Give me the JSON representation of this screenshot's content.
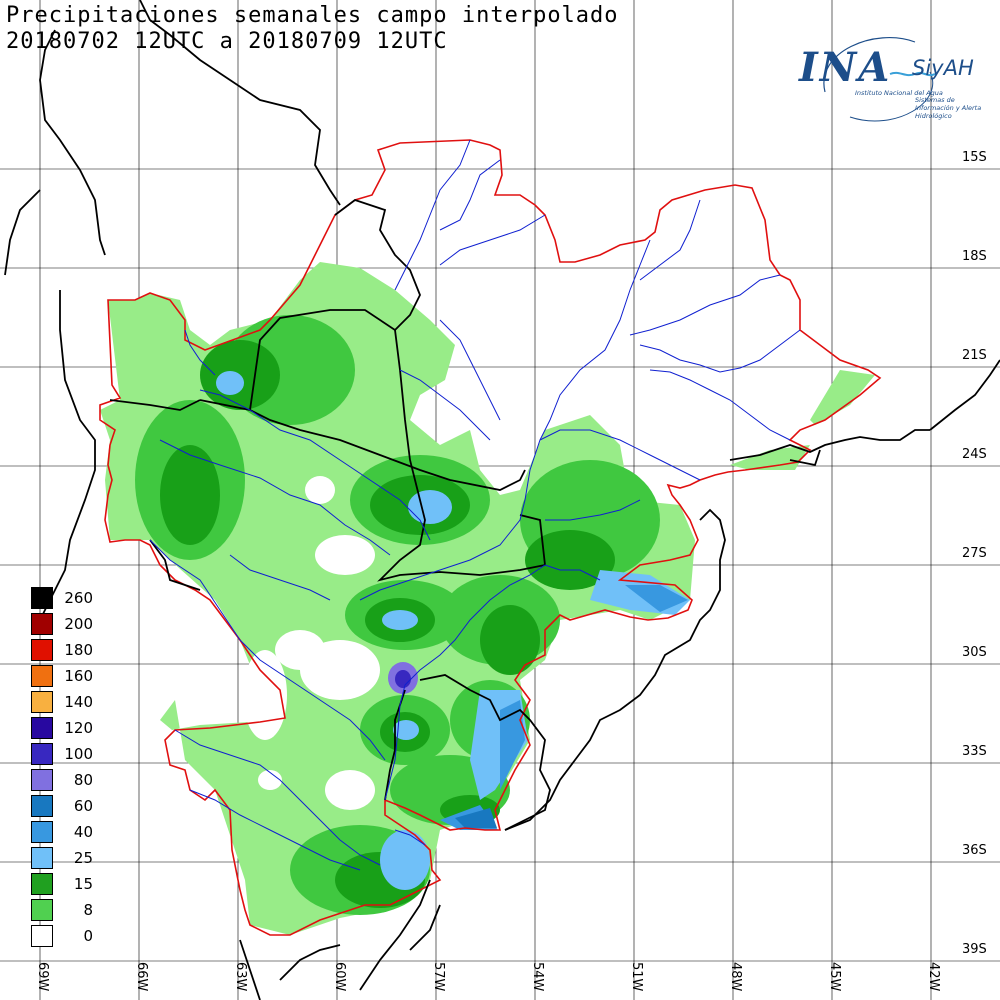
{
  "title": {
    "line1": "Precipitaciones semanales campo interpolado",
    "line2": "20180702 12UTC a 20180709 12UTC"
  },
  "logo": {
    "name": "INA",
    "system": "SiyAH",
    "institute": "Instituto Nacional del Agua",
    "system_full": "Sistemas de Información y Alerta Hidrológico"
  },
  "lat_labels": [
    "15S",
    "18S",
    "21S",
    "24S",
    "27S",
    "30S",
    "33S",
    "36S",
    "39S"
  ],
  "lon_labels": [
    "69W",
    "66W",
    "63W",
    "60W",
    "57W",
    "54W",
    "51W",
    "48W",
    "45W",
    "42W"
  ],
  "legend": [
    {
      "label": "260",
      "color": "#000000"
    },
    {
      "label": "200",
      "color": "#a00000"
    },
    {
      "label": "180",
      "color": "#e01000"
    },
    {
      "label": "160",
      "color": "#f07010"
    },
    {
      "label": "140",
      "color": "#f8b040"
    },
    {
      "label": "120",
      "color": "#2808a0"
    },
    {
      "label": "100",
      "color": "#3828c0"
    },
    {
      "label": "80",
      "color": "#8070e0"
    },
    {
      "label": "60",
      "color": "#1878c0"
    },
    {
      "label": "40",
      "color": "#3898e0"
    },
    {
      "label": "25",
      "color": "#70c0f8"
    },
    {
      "label": "15",
      "color": "#20a020"
    },
    {
      "label": "8",
      "color": "#50d050"
    },
    {
      "label": "0",
      "color": "#ffffff"
    }
  ],
  "colors": {
    "light_green": "#98ec88",
    "mid_green": "#40c840",
    "dark_green": "#18a018",
    "light_blue": "#70c0f8",
    "mid_blue": "#3898e0",
    "dark_blue": "#1878c0",
    "purple": "#3828c0",
    "basin_border": "#e01010",
    "river": "#1010d0",
    "country_border": "#000000"
  }
}
